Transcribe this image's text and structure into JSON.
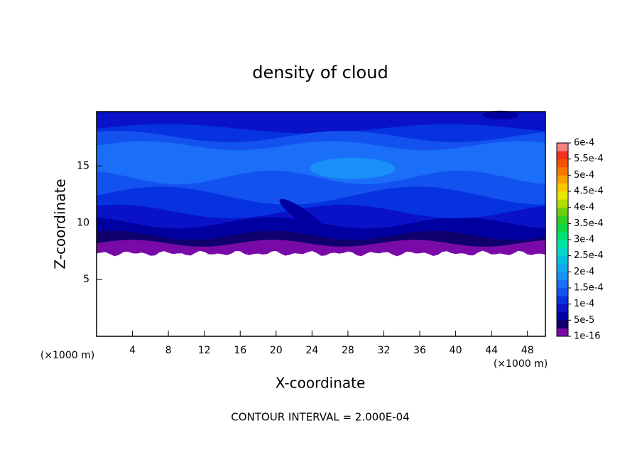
{
  "chart_data": {
    "type": "contour",
    "title": "density of cloud",
    "x_label": "X-coordinate",
    "y_label": "Z-coordinate",
    "x_unit": "(×1000 m)",
    "y_unit": "(×1000 m)",
    "footer": "CONTOUR INTERVAL = 2.000E-04",
    "xlim": [
      0,
      50
    ],
    "xticks": [
      4,
      8,
      12,
      16,
      20,
      24,
      28,
      32,
      36,
      40,
      44,
      48
    ],
    "ylim": [
      0,
      19.8
    ],
    "yticks": [
      5,
      10,
      15
    ],
    "colorbar": {
      "levels": [
        {
          "value": 1e-16,
          "label": "1e-16"
        },
        {
          "value": 5e-05,
          "label": "5e-5"
        },
        {
          "value": 0.0001,
          "label": "1e-4"
        },
        {
          "value": 0.00015,
          "label": "1.5e-4"
        },
        {
          "value": 0.0002,
          "label": "2e-4"
        },
        {
          "value": 0.00025,
          "label": "2.5e-4"
        },
        {
          "value": 0.0003,
          "label": "3e-4"
        },
        {
          "value": 0.00035,
          "label": "3.5e-4"
        },
        {
          "value": 0.0004,
          "label": "4e-4"
        },
        {
          "value": 0.00045,
          "label": "4.5e-4"
        },
        {
          "value": 0.0005,
          "label": "5e-4"
        },
        {
          "value": 0.00055,
          "label": "5.5e-4"
        },
        {
          "value": 0.0006,
          "label": "6e-4"
        }
      ],
      "colors": [
        "#7a0aa8",
        "#10006e",
        "#0000a0",
        "#0a12c8",
        "#0632e0",
        "#1452f0",
        "#1a6ef8",
        "#1890f8",
        "#10a8f0",
        "#00c0e0",
        "#00d8c8",
        "#00e8a0",
        "#00e070",
        "#10d840",
        "#30d020",
        "#70d010",
        "#b0e000",
        "#e8e800",
        "#f8c800",
        "#f8a000",
        "#f87800",
        "#f85000",
        "#f83020",
        "#f88080"
      ]
    }
  }
}
